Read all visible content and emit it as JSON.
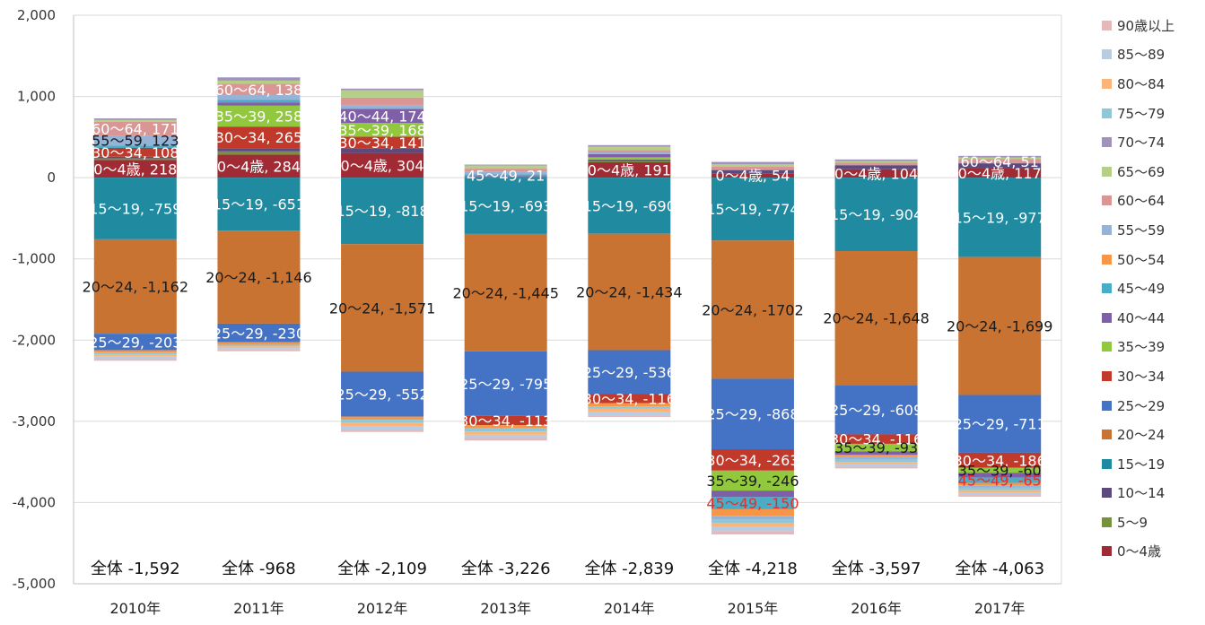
{
  "chart_data": {
    "type": "bar",
    "stacked": true,
    "ylim": [
      -5000,
      2000
    ],
    "yticks": [
      "2,000",
      "1,000",
      "0",
      "-1,000",
      "-2,000",
      "-3,000",
      "-4,000",
      "-5,000"
    ],
    "ytick_values": [
      2000,
      1000,
      0,
      -1000,
      -2000,
      -3000,
      -4000,
      -5000
    ],
    "categories": [
      "2010年",
      "2011年",
      "2012年",
      "2013年",
      "2014年",
      "2015年",
      "2016年",
      "2017年"
    ],
    "totals": [
      "全体 -1,592",
      "全体 -968",
      "全体 -2,109",
      "全体 -3,226",
      "全体 -2,839",
      "全体 -4,218",
      "全体 -3,597",
      "全体 -4,063"
    ],
    "legend_position": "right",
    "grid": true,
    "series": [
      {
        "name": "0～4歳",
        "color": "#a02b35",
        "values": [
          218,
          284,
          304,
          0,
          191,
          54,
          104,
          117
        ]
      },
      {
        "name": "5～9",
        "color": "#76923c",
        "values": [
          20,
          40,
          0,
          0,
          10,
          0,
          0,
          0
        ]
      },
      {
        "name": "10～14",
        "color": "#5c4a7d",
        "values": [
          20,
          40,
          60,
          0,
          20,
          40,
          50,
          60
        ]
      },
      {
        "name": "15～19",
        "color": "#1f8aa0",
        "values": [
          -759,
          -651,
          -818,
          -693,
          -690,
          -774,
          -904,
          -977
        ]
      },
      {
        "name": "20～24",
        "color": "#c87332",
        "values": [
          -1162,
          -1146,
          -1571,
          -1445,
          -1434,
          -1702,
          -1648,
          -1699
        ]
      },
      {
        "name": "25～29",
        "color": "#4472c4",
        "values": [
          -203,
          -230,
          -552,
          -795,
          -536,
          -868,
          -609,
          -711
        ]
      },
      {
        "name": "30～34",
        "color": "#c0392b",
        "values": [
          108,
          265,
          141,
          -113,
          -116,
          -263,
          -116,
          -186
        ]
      },
      {
        "name": "35～39",
        "color": "#92c83e",
        "values": [
          0,
          258,
          168,
          0,
          30,
          -246,
          -93,
          -60
        ]
      },
      {
        "name": "40～44",
        "color": "#7f5fa8",
        "values": [
          0,
          40,
          174,
          20,
          40,
          -80,
          -40,
          -60
        ]
      },
      {
        "name": "45～49",
        "color": "#4bacc6",
        "values": [
          30,
          30,
          0,
          21,
          0,
          -150,
          0,
          -65
        ]
      },
      {
        "name": "50～54",
        "color": "#f79646",
        "values": [
          -30,
          -30,
          -40,
          -40,
          -40,
          -80,
          -30,
          -30
        ]
      },
      {
        "name": "55～59",
        "color": "#95b3d7",
        "values": [
          123,
          60,
          40,
          30,
          20,
          -50,
          -30,
          -30
        ]
      },
      {
        "name": "60～64",
        "color": "#d99694",
        "values": [
          171,
          138,
          100,
          40,
          30,
          40,
          30,
          51
        ]
      },
      {
        "name": "65～69",
        "color": "#b5cf87",
        "values": [
          20,
          40,
          90,
          40,
          40,
          30,
          20,
          20
        ]
      },
      {
        "name": "70～74",
        "color": "#a092bd",
        "values": [
          20,
          40,
          20,
          10,
          20,
          30,
          20,
          20
        ]
      },
      {
        "name": "75～79",
        "color": "#8ec8d8",
        "values": [
          -20,
          -20,
          -40,
          -40,
          -30,
          -40,
          -30,
          -30
        ]
      },
      {
        "name": "80～84",
        "color": "#fbb47a",
        "values": [
          -30,
          -20,
          -40,
          -40,
          -40,
          -50,
          -30,
          -30
        ]
      },
      {
        "name": "85～89",
        "color": "#b8cce4",
        "values": [
          -30,
          -20,
          -40,
          -40,
          -40,
          -50,
          -30,
          -30
        ]
      },
      {
        "name": "90歳以上",
        "color": "#e6b8b7",
        "values": [
          -20,
          -20,
          -30,
          -30,
          -20,
          -40,
          -20,
          -20
        ]
      }
    ],
    "data_labels": [
      [
        {
          "series": 12,
          "text": "60～64, 171"
        },
        {
          "series": 11,
          "text": "55～59, 123"
        },
        {
          "series": 6,
          "text": "30～34, 108"
        },
        {
          "series": 0,
          "text": "0～4歳, 218"
        },
        {
          "series": 3,
          "text": "15～19, -759"
        },
        {
          "series": 4,
          "text": "20～24, -1,162"
        },
        {
          "series": 5,
          "text": "25～29, -203"
        }
      ],
      [
        {
          "series": 12,
          "text": "60～64, 138"
        },
        {
          "series": 7,
          "text": "35～39, 258"
        },
        {
          "series": 6,
          "text": "30～34, 265"
        },
        {
          "series": 0,
          "text": "0～4歳, 284"
        },
        {
          "series": 3,
          "text": "15～19, -651"
        },
        {
          "series": 4,
          "text": "20～24, -1,146"
        },
        {
          "series": 5,
          "text": "25～29, -230"
        }
      ],
      [
        {
          "series": 8,
          "text": "40～44, 174"
        },
        {
          "series": 7,
          "text": "35～39, 168"
        },
        {
          "series": 6,
          "text": "30～34, 141"
        },
        {
          "series": 0,
          "text": "0～4歳, 304"
        },
        {
          "series": 3,
          "text": "15～19, -818"
        },
        {
          "series": 4,
          "text": "20～24, -1,571"
        },
        {
          "series": 5,
          "text": "25～29, -552"
        }
      ],
      [
        {
          "series": 9,
          "text": "45～49, 21"
        },
        {
          "series": 3,
          "text": "15～19, -693"
        },
        {
          "series": 4,
          "text": "20～24, -1,445"
        },
        {
          "series": 5,
          "text": "25～29, -795"
        },
        {
          "series": 6,
          "text": "30～34, -113"
        }
      ],
      [
        {
          "series": 0,
          "text": "0～4歳, 191"
        },
        {
          "series": 3,
          "text": "15～19, -690"
        },
        {
          "series": 4,
          "text": "20～24, -1,434"
        },
        {
          "series": 5,
          "text": "25～29, -536"
        },
        {
          "series": 6,
          "text": "30～34, -116"
        }
      ],
      [
        {
          "series": 0,
          "text": "0～4歳, 54"
        },
        {
          "series": 3,
          "text": "15～19, -774"
        },
        {
          "series": 4,
          "text": "20～24, -1702"
        },
        {
          "series": 5,
          "text": "25～29, -868"
        },
        {
          "series": 6,
          "text": "30～34, -263"
        },
        {
          "series": 7,
          "text": "35～39, -246"
        },
        {
          "series": 9,
          "text": "45～49, -150"
        }
      ],
      [
        {
          "series": 0,
          "text": "0～4歳, 104"
        },
        {
          "series": 3,
          "text": "15～19, -904"
        },
        {
          "series": 4,
          "text": "20～24, -1,648"
        },
        {
          "series": 5,
          "text": "25～29, -609"
        },
        {
          "series": 6,
          "text": "30～34, -116"
        },
        {
          "series": 7,
          "text": "35～39, -93"
        }
      ],
      [
        {
          "series": 12,
          "text": "60～64, 51"
        },
        {
          "series": 0,
          "text": "0～4歳, 117"
        },
        {
          "series": 3,
          "text": "15～19, -977"
        },
        {
          "series": 4,
          "text": "20～24, -1,699"
        },
        {
          "series": 5,
          "text": "25～29, -711"
        },
        {
          "series": 6,
          "text": "30～34, -186"
        },
        {
          "series": 7,
          "text": "35～39, -60"
        },
        {
          "series": 9,
          "text": "45～49, -65"
        }
      ]
    ]
  }
}
